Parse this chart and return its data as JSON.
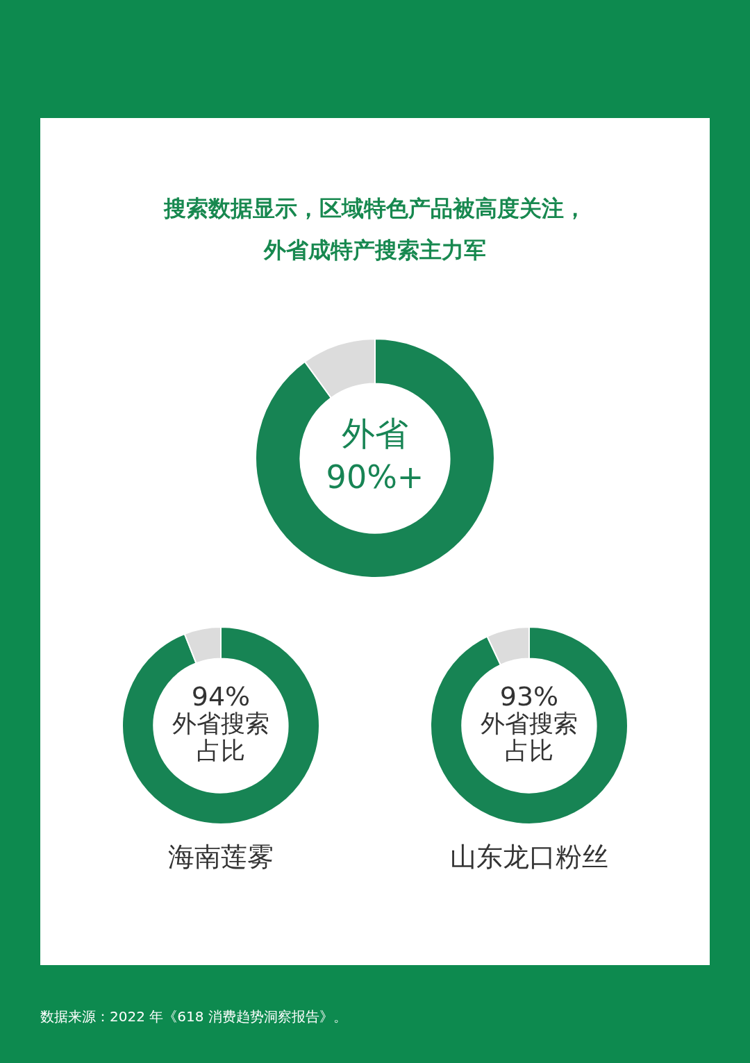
{
  "chart_data": [
    {
      "type": "donut",
      "title": "搜索数据显示，区域特色产品被高度关注，外省成特产搜索主力军",
      "categories": [
        "外省",
        null
      ],
      "values": [
        90,
        10
      ],
      "colors": [
        "#178454",
        "#dcdcdc"
      ],
      "value_labels": [
        "90%+",
        null
      ],
      "annotations": [
        "数据来源：2022 年《618 消费趋势洞察报告》。"
      ]
    },
    {
      "type": "donut",
      "title": "海南莲雾",
      "categories": [
        "外省搜索占比",
        null
      ],
      "values": [
        94,
        6
      ],
      "colors": [
        "#178454",
        "#dcdcdc"
      ],
      "value_labels": [
        "94%",
        null
      ]
    },
    {
      "type": "donut",
      "title": "山东龙口粉丝",
      "categories": [
        "外省搜索占比",
        null
      ],
      "values": [
        93,
        7
      ],
      "colors": [
        "#178454",
        "#dcdcdc"
      ],
      "value_labels": [
        "93%",
        null
      ]
    }
  ]
}
